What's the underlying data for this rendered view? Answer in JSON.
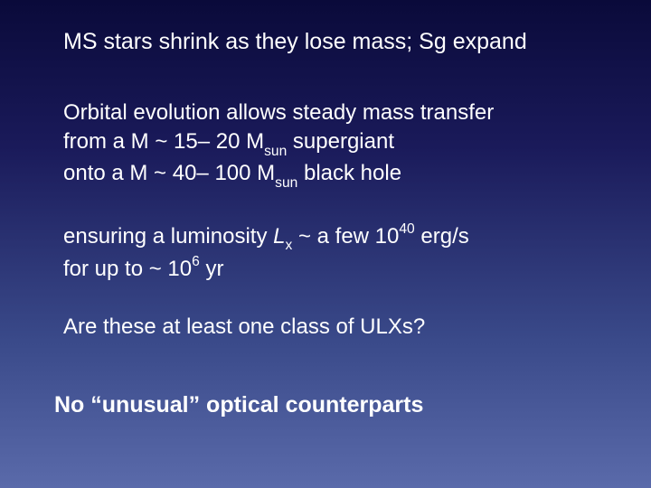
{
  "slide": {
    "background_gradient": [
      "#0a0a3a",
      "#1a1a5a",
      "#3a4a8a",
      "#5a6aaa"
    ],
    "text_color": "#ffffff",
    "font_family": "Arial",
    "title": "MS stars shrink as they lose mass;  Sg expand",
    "title_fontsize": 25,
    "para1_line1": "Orbital evolution allows steady mass transfer",
    "para1_line2a": "from a M ~ 15– 20 M",
    "para1_line2_sub": "sun",
    "para1_line2b": " supergiant",
    "para1_line3a": "onto a M ~ 40– 100 M",
    "para1_line3_sub": "sun",
    "para1_line3b": " black hole",
    "para2_a": "ensuring a luminosity ",
    "para2_Lx": "L",
    "para2_Lx_sub": "x",
    "para2_b": " ~ a few 10",
    "para2_exp1": "40",
    "para2_c": " erg/s",
    "para2_line2a": "for up to ~ 10",
    "para2_exp2": "6",
    "para2_line2b": " yr",
    "question": "Are these at least one class of ULXs?",
    "footer": "No “unusual” optical counterparts",
    "body_fontsize": 24,
    "footer_fontsize": 25
  }
}
